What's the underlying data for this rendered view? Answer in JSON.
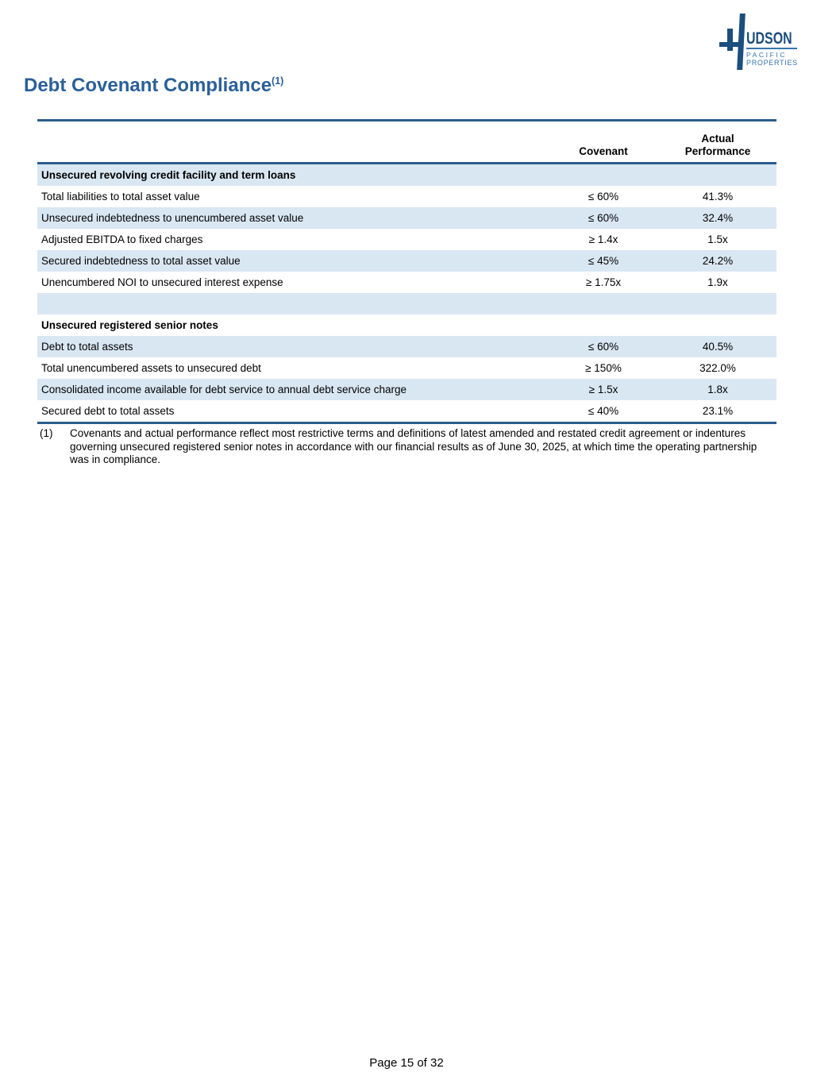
{
  "colors": {
    "title_blue": "#2A5F99",
    "rule_blue": "#2C5D8C",
    "stripe_blue": "#D9E7F3",
    "logo_dark_blue": "#1C4E7E",
    "logo_light_blue": "#3474AE"
  },
  "logo": {
    "name_main": "UDSON",
    "name_sub1": "PACIFIC",
    "name_sub2": "PROPERTIES"
  },
  "page": {
    "title": "Debt Covenant Compliance",
    "title_superscript": "(1)",
    "footer": "Page 15 of 32"
  },
  "table": {
    "header": {
      "covenant": "Covenant",
      "actual_line1": "Actual",
      "actual_line2": "Performance"
    },
    "sections": [
      {
        "header": "Unsecured revolving credit facility and term loans",
        "rows": [
          {
            "label": "Total liabilities to total asset value",
            "covenant": "≤ 60%",
            "actual": "41.3%"
          },
          {
            "label": "Unsecured indebtedness to unencumbered asset value",
            "covenant": "≤ 60%",
            "actual": "32.4%"
          },
          {
            "label": "Adjusted EBITDA to fixed charges",
            "covenant": "≥ 1.4x",
            "actual": "1.5x"
          },
          {
            "label": "Secured indebtedness to total asset value",
            "covenant": "≤ 45%",
            "actual": "24.2%"
          },
          {
            "label": "Unencumbered NOI to unsecured interest expense",
            "covenant": "≥ 1.75x",
            "actual": "1.9x"
          }
        ]
      },
      {
        "header": "Unsecured registered senior notes",
        "rows": [
          {
            "label": "Debt to total assets",
            "covenant": "≤ 60%",
            "actual": "40.5%"
          },
          {
            "label": "Total unencumbered assets to unsecured debt",
            "covenant": "≥ 150%",
            "actual": "322.0%"
          },
          {
            "label": "Consolidated income available for debt service to annual debt service charge",
            "covenant": "≥ 1.5x",
            "actual": "1.8x"
          },
          {
            "label": "Secured debt to total assets",
            "covenant": "≤ 40%",
            "actual": "23.1%"
          }
        ]
      }
    ]
  },
  "footnote": {
    "marker": "(1)",
    "text": "Covenants and actual performance reflect most restrictive terms and definitions of latest amended and restated credit agreement or indentures governing unsecured registered senior notes in accordance with our financial results as of June 30, 2025, at which time the operating partnership was in compliance."
  }
}
